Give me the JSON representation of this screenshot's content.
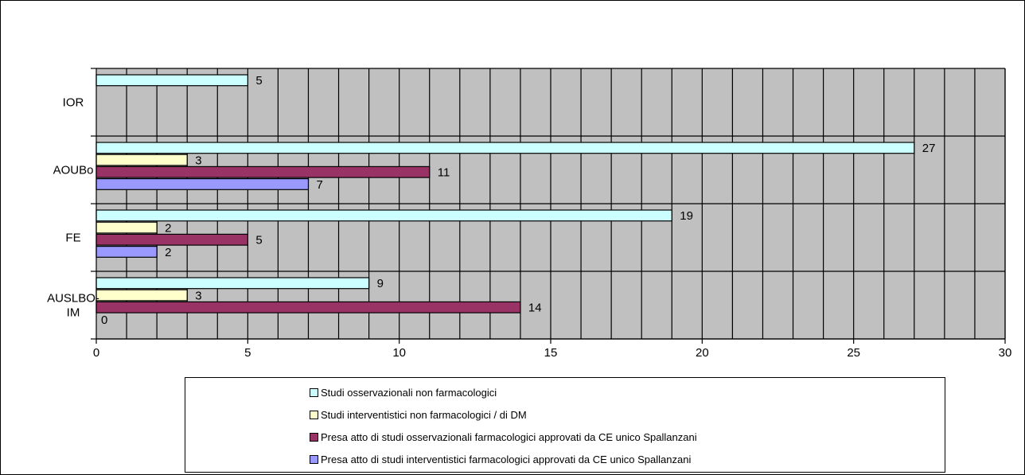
{
  "chart_data": {
    "type": "bar",
    "orientation": "horizontal",
    "categories": [
      "IOR",
      "AOUBo",
      "FE",
      "AUSLBO-IM"
    ],
    "series": [
      {
        "name": "Studi osservazionali non farmacologici",
        "color": "#ccffff",
        "values": [
          5,
          27,
          19,
          9
        ]
      },
      {
        "name": "Studi interventistici non farmacologici / di DM",
        "color": "#ffffcc",
        "values": [
          null,
          3,
          2,
          3
        ]
      },
      {
        "name": "Presa atto di studi osservazionali farmacologici approvati da CE unico Spallanzani",
        "color": "#993366",
        "values": [
          null,
          11,
          5,
          14
        ]
      },
      {
        "name": "Presa atto di studi interventistici farmacologici approvati da CE unico Spallanzani",
        "color": "#9999ff",
        "values": [
          null,
          7,
          2,
          0
        ]
      }
    ],
    "xlim": [
      0,
      30
    ],
    "x_ticks": [
      0,
      5,
      10,
      15,
      20,
      25,
      30
    ],
    "grid": true,
    "plot_background": "#c0c0c0",
    "legend_position": "bottom",
    "data_labels": true
  }
}
